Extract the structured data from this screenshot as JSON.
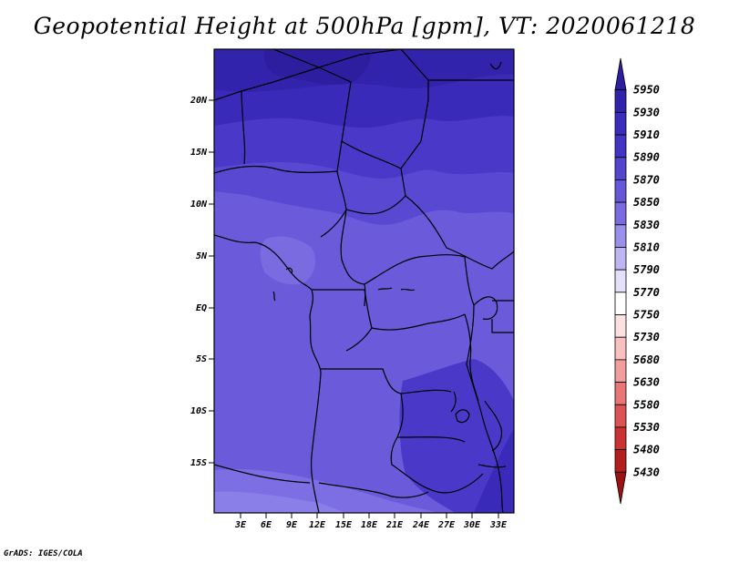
{
  "title": "Geopotential Height at 500hPa [gpm], VT: 2020061218",
  "credit": "GrADS: IGES/COLA",
  "map": {
    "lat_labels": [
      "20N",
      "15N",
      "10N",
      "5N",
      "EQ",
      "5S",
      "10S",
      "15S"
    ],
    "lon_labels": [
      "3E",
      "6E",
      "9E",
      "12E",
      "15E",
      "18E",
      "21E",
      "24E",
      "27E",
      "30E",
      "33E"
    ]
  },
  "colorbar": {
    "levels": [
      "5950",
      "5930",
      "5910",
      "5890",
      "5870",
      "5850",
      "5830",
      "5810",
      "5790",
      "5770",
      "5750",
      "5730",
      "5680",
      "5630",
      "5580",
      "5530",
      "5480",
      "5430"
    ],
    "colors": [
      "#2d1ea0",
      "#3223ac",
      "#3a2cbc",
      "#4434c6",
      "#5445cf",
      "#6657d8",
      "#7a6ce0",
      "#9a8fea",
      "#bdb6f3",
      "#e4e0fb",
      "#ffffff",
      "#fde0e0",
      "#f9c0c0",
      "#f29c9c",
      "#e97676",
      "#dd5252",
      "#cc3232",
      "#b51e1e",
      "#9c1212"
    ]
  }
}
